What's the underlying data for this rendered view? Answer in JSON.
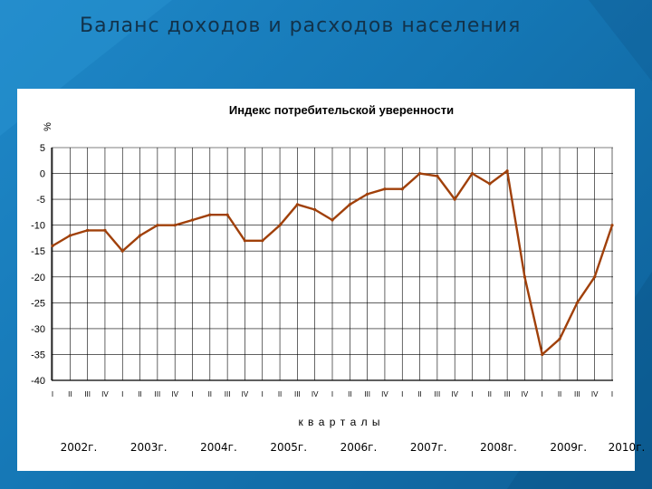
{
  "slide": {
    "title": "Баланс доходов и расходов населения"
  },
  "colors": {
    "line": "#a0400a",
    "grid": "#000000",
    "background_top": "#1f88c8",
    "background_bottom": "#0e5f97"
  },
  "chart_data": {
    "type": "line",
    "title": "Индекс потребительской уверенности",
    "ylabel": "%",
    "xlabel": "к в а р т а л ы",
    "ylim": [
      -40,
      5
    ],
    "yticks": [
      5,
      0,
      -5,
      -10,
      -15,
      -20,
      -25,
      -30,
      -35,
      -40
    ],
    "grid": true,
    "x": [
      "I",
      "II",
      "III",
      "IV",
      "I",
      "II",
      "III",
      "IV",
      "I",
      "II",
      "III",
      "IV",
      "I",
      "II",
      "III",
      "IV",
      "I",
      "II",
      "III",
      "IV",
      "I",
      "II",
      "III",
      "IV",
      "I",
      "II",
      "III",
      "IV",
      "I",
      "II",
      "III",
      "IV",
      "I"
    ],
    "years": [
      "2002г.",
      "2003г.",
      "2004г.",
      "2005г.",
      "2006г.",
      "2007г.",
      "2008г.",
      "2009г.",
      "2010г."
    ],
    "series": [
      {
        "values": [
          -14,
          -12,
          -11,
          -11,
          -15,
          -12,
          -10,
          -10,
          -9,
          -8,
          -8,
          -13,
          -13,
          -10,
          -6,
          -7,
          -9,
          -6,
          -4,
          -3,
          -3,
          0,
          -0.5,
          -5,
          0,
          -2,
          0.5,
          -20,
          -35,
          -32,
          -25,
          -20,
          -10
        ]
      }
    ]
  }
}
